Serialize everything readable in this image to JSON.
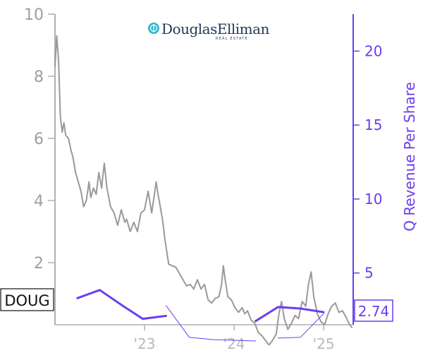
{
  "chart_data": {
    "type": "line",
    "logo": {
      "name": "DouglasElliman",
      "subtitle": "REAL ESTATE"
    },
    "ticker": "DOUG",
    "last_value_label": "2.74",
    "y_left": {
      "range": [
        0,
        10
      ],
      "ticks": [
        2,
        4,
        6,
        8,
        10
      ],
      "tick_labels": [
        "2",
        "4",
        "6",
        "8",
        "10"
      ]
    },
    "y_right": {
      "label": "Q Revenue Per Share",
      "range": [
        1.5,
        22.5
      ],
      "ticks": [
        5,
        10,
        15,
        20
      ],
      "tick_labels": [
        "5",
        "10",
        "15",
        "20"
      ]
    },
    "x_axis": {
      "range": [
        2022.0,
        2025.33
      ],
      "ticks": [
        2023.0,
        2024.0,
        2025.0
      ],
      "tick_labels": [
        "'23",
        "'24",
        "'25"
      ]
    },
    "price_series": {
      "color": "#999999",
      "points": [
        [
          2022.0,
          8.3
        ],
        [
          2022.02,
          9.3
        ],
        [
          2022.04,
          8.5
        ],
        [
          2022.06,
          6.7
        ],
        [
          2022.08,
          6.2
        ],
        [
          2022.1,
          6.5
        ],
        [
          2022.12,
          6.1
        ],
        [
          2022.15,
          6.0
        ],
        [
          2022.18,
          5.6
        ],
        [
          2022.2,
          5.4
        ],
        [
          2022.23,
          4.9
        ],
        [
          2022.26,
          4.6
        ],
        [
          2022.29,
          4.3
        ],
        [
          2022.32,
          3.8
        ],
        [
          2022.35,
          4.0
        ],
        [
          2022.38,
          4.6
        ],
        [
          2022.4,
          4.1
        ],
        [
          2022.43,
          4.4
        ],
        [
          2022.46,
          4.2
        ],
        [
          2022.49,
          4.9
        ],
        [
          2022.52,
          4.4
        ],
        [
          2022.55,
          5.2
        ],
        [
          2022.58,
          4.4
        ],
        [
          2022.62,
          3.8
        ],
        [
          2022.66,
          3.6
        ],
        [
          2022.7,
          3.2
        ],
        [
          2022.74,
          3.7
        ],
        [
          2022.78,
          3.3
        ],
        [
          2022.8,
          3.4
        ],
        [
          2022.84,
          3.0
        ],
        [
          2022.88,
          3.3
        ],
        [
          2022.92,
          3.0
        ],
        [
          2022.96,
          3.6
        ],
        [
          2023.0,
          3.7
        ],
        [
          2023.04,
          4.3
        ],
        [
          2023.08,
          3.6
        ],
        [
          2023.11,
          4.2
        ],
        [
          2023.13,
          4.6
        ],
        [
          2023.15,
          4.2
        ],
        [
          2023.17,
          3.9
        ],
        [
          2023.2,
          3.4
        ],
        [
          2023.23,
          2.7
        ],
        [
          2023.27,
          1.95
        ],
        [
          2023.31,
          1.9
        ],
        [
          2023.35,
          1.85
        ],
        [
          2023.39,
          1.65
        ],
        [
          2023.43,
          1.45
        ],
        [
          2023.47,
          1.25
        ],
        [
          2023.51,
          1.3
        ],
        [
          2023.55,
          1.15
        ],
        [
          2023.59,
          1.45
        ],
        [
          2023.63,
          1.15
        ],
        [
          2023.67,
          1.3
        ],
        [
          2023.71,
          0.8
        ],
        [
          2023.75,
          0.7
        ],
        [
          2023.79,
          0.85
        ],
        [
          2023.83,
          0.9
        ],
        [
          2023.86,
          1.3
        ],
        [
          2023.88,
          1.9
        ],
        [
          2023.9,
          1.45
        ],
        [
          2023.93,
          0.9
        ],
        [
          2023.97,
          0.8
        ],
        [
          2024.01,
          0.55
        ],
        [
          2024.05,
          0.4
        ],
        [
          2024.09,
          0.55
        ],
        [
          2024.12,
          0.35
        ],
        [
          2024.15,
          0.45
        ],
        [
          2024.19,
          0.15
        ],
        [
          2024.23,
          0.05
        ],
        [
          2024.27,
          -0.25
        ],
        [
          2024.31,
          -0.35
        ],
        [
          2024.35,
          -0.5
        ],
        [
          2024.39,
          -0.65
        ],
        [
          2024.43,
          -0.5
        ],
        [
          2024.47,
          -0.3
        ],
        [
          2024.5,
          0.35
        ],
        [
          2024.53,
          0.75
        ],
        [
          2024.56,
          0.2
        ],
        [
          2024.6,
          -0.15
        ],
        [
          2024.64,
          0.05
        ],
        [
          2024.68,
          0.3
        ],
        [
          2024.72,
          0.2
        ],
        [
          2024.76,
          0.75
        ],
        [
          2024.8,
          0.6
        ],
        [
          2024.83,
          1.3
        ],
        [
          2024.86,
          1.7
        ],
        [
          2024.89,
          0.9
        ],
        [
          2024.93,
          0.35
        ],
        [
          2024.97,
          0.1
        ],
        [
          2025.01,
          0.0
        ],
        [
          2025.05,
          0.35
        ],
        [
          2025.09,
          0.6
        ],
        [
          2025.13,
          0.7
        ],
        [
          2025.17,
          0.4
        ],
        [
          2025.21,
          0.45
        ],
        [
          2025.25,
          0.25
        ],
        [
          2025.29,
          0.0
        ],
        [
          2025.32,
          -0.1
        ]
      ]
    },
    "revenue_series": {
      "name": "Q Revenue Per Share",
      "color": "#6a3df0",
      "segments": [
        {
          "weight": "thick",
          "points": [
            [
              2022.25,
              3.3
            ],
            [
              2022.5,
              3.85
            ],
            [
              2022.74,
              2.85
            ],
            [
              2022.98,
              1.9
            ],
            [
              2023.24,
              2.1
            ]
          ]
        },
        {
          "weight": "thin",
          "points": [
            [
              2023.24,
              2.8
            ],
            [
              2023.5,
              0.65
            ],
            [
              2023.76,
              0.5
            ],
            [
              2024.0,
              0.45
            ],
            [
              2024.24,
              0.4
            ]
          ]
        },
        {
          "weight": "thick",
          "points": [
            [
              2024.24,
              1.75
            ],
            [
              2024.49,
              2.7
            ],
            [
              2024.74,
              2.6
            ],
            [
              2025.0,
              2.35
            ]
          ]
        },
        {
          "weight": "thin",
          "points": [
            [
              2024.49,
              0.6
            ],
            [
              2024.74,
              0.65
            ],
            [
              2025.0,
              2.25
            ]
          ]
        }
      ]
    }
  }
}
